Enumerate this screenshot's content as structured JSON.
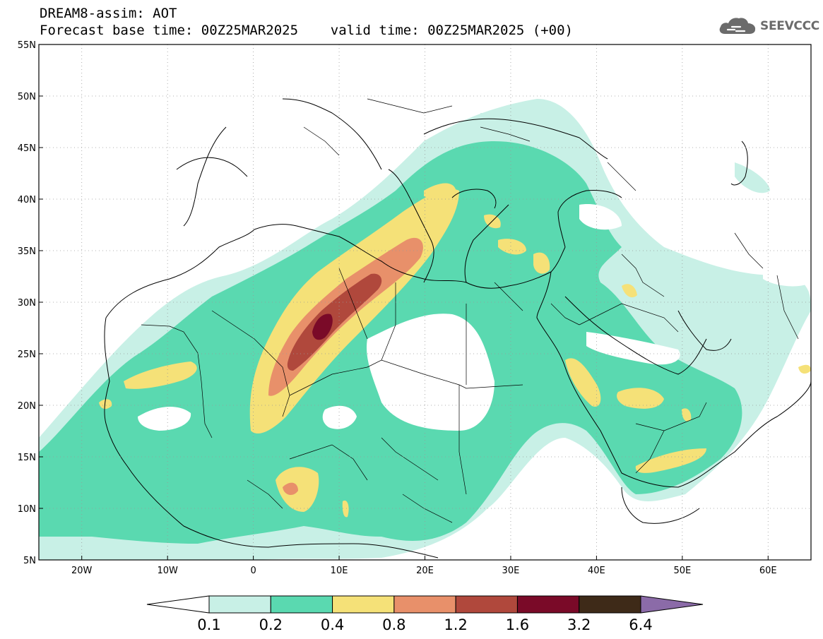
{
  "title": {
    "line1": "DREAM8-assim: AOT",
    "line2": "Forecast base time: 00Z25MAR2025    valid time: 00Z25MAR2025 (+00)"
  },
  "logo": {
    "text": "SEEVCCC",
    "icon": "cloud-icon",
    "color": "#6b6b6b"
  },
  "map": {
    "lon_range": [
      -25,
      65
    ],
    "lat_range": [
      5,
      55
    ],
    "lon_ticks": [
      {
        "value": -20,
        "label": "20W"
      },
      {
        "value": -10,
        "label": "10W"
      },
      {
        "value": 0,
        "label": "0"
      },
      {
        "value": 10,
        "label": "10E"
      },
      {
        "value": 20,
        "label": "20E"
      },
      {
        "value": 30,
        "label": "30E"
      },
      {
        "value": 40,
        "label": "40E"
      },
      {
        "value": 50,
        "label": "50E"
      },
      {
        "value": 60,
        "label": "60E"
      }
    ],
    "lat_ticks": [
      {
        "value": 55,
        "label": "55N"
      },
      {
        "value": 50,
        "label": "50N"
      },
      {
        "value": 45,
        "label": "45N"
      },
      {
        "value": 40,
        "label": "40N"
      },
      {
        "value": 35,
        "label": "35N"
      },
      {
        "value": 30,
        "label": "30N"
      },
      {
        "value": 25,
        "label": "25N"
      },
      {
        "value": 20,
        "label": "20N"
      },
      {
        "value": 15,
        "label": "15N"
      },
      {
        "value": 10,
        "label": "10N"
      },
      {
        "value": 5,
        "label": "5N"
      }
    ],
    "gridlines": true
  },
  "colorbar": {
    "colors": [
      "#ffffff",
      "#c8f0e6",
      "#5ad9b0",
      "#f5e178",
      "#e8906a",
      "#b0483c",
      "#7a0a28",
      "#3e2a18",
      "#8b6ba8"
    ],
    "labels": [
      "0.1",
      "0.2",
      "0.4",
      "0.8",
      "1.2",
      "1.6",
      "3.2",
      "6.4"
    ]
  }
}
